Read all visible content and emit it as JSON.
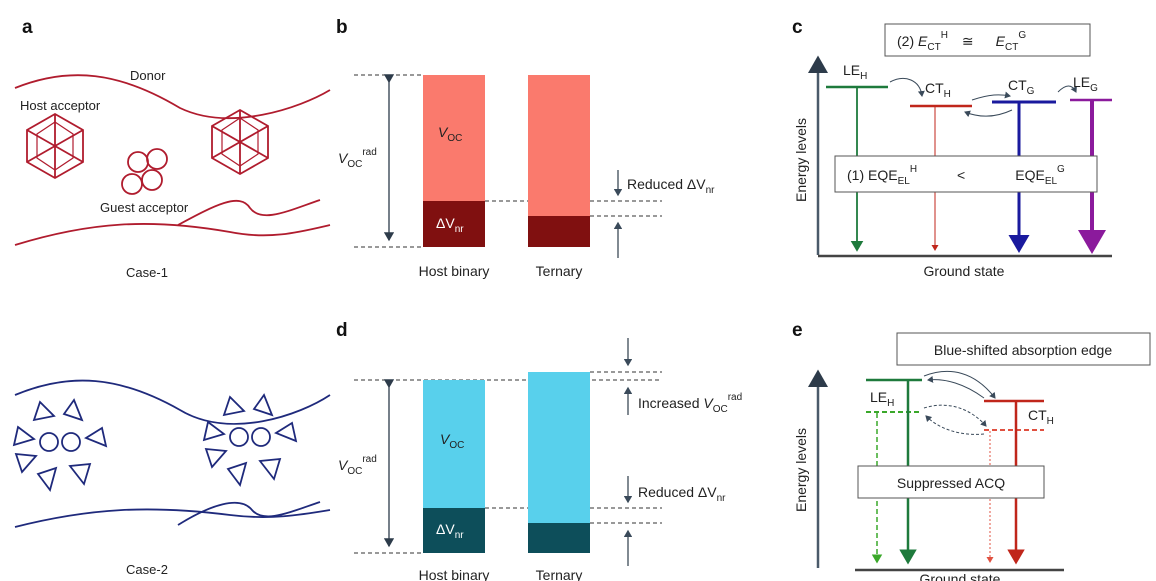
{
  "panel_labels": {
    "a": "a",
    "b": "b",
    "c": "c",
    "d": "d",
    "e": "e"
  },
  "panel_a": {
    "donor": "Donor",
    "host_acceptor": "Host acceptor",
    "guest_acceptor": "Guest acceptor",
    "case1": "Case-1",
    "case2": "Case-2",
    "colors": {
      "case1": "#b01c2e",
      "case2": "#1f2a7c"
    }
  },
  "panel_b": {
    "voc_rad_main": "V",
    "voc_rad_sub": "OC",
    "voc_rad_sup": "rad",
    "voc_main": "V",
    "voc_sub": "OC",
    "dvnr_main": "ΔV",
    "dvnr_sub": "nr",
    "reduced_text": "Reduced ΔV",
    "reduced_sub": "nr",
    "x_labels": [
      "Host binary",
      "Ternary"
    ],
    "colors": {
      "voc": "#fa7a6d",
      "dvnr": "#801010"
    }
  },
  "panel_c": {
    "condition2_prefix": "(2) ",
    "condition2_E": "E",
    "condition2_sub": "CT",
    "condition2_supH": "H",
    "condition2_approx": "≅",
    "condition2_supG": "G",
    "condition1_prefix": "(1) EQE",
    "condition1_sub": "EL",
    "condition1_supH": "H",
    "condition1_lt": "<",
    "condition1_supG": "G",
    "levels": [
      {
        "main": "LE",
        "sub": "H",
        "color": "#1e7a3c"
      },
      {
        "main": "CT",
        "sub": "H",
        "color": "#c0261b"
      },
      {
        "main": "CT",
        "sub": "G",
        "color": "#1a1a9e"
      },
      {
        "main": "LE",
        "sub": "G",
        "color": "#8b1a9c"
      }
    ],
    "y_axis": "Energy levels",
    "ground_state": "Ground state"
  },
  "panel_d": {
    "voc_rad_main": "V",
    "voc_rad_sub": "OC",
    "voc_rad_sup": "rad",
    "voc_main": "V",
    "voc_sub": "OC",
    "dvnr_main": "ΔV",
    "dvnr_sub": "nr",
    "increased_text": "Increased ",
    "increased_V": "V",
    "increased_sub": "OC",
    "increased_sup": "rad",
    "reduced_text": "Reduced ΔV",
    "reduced_sub": "nr",
    "x_labels": [
      "Host binary",
      "Ternary"
    ],
    "colors": {
      "voc": "#58d0ec",
      "dvnr": "#0d4e5a"
    }
  },
  "panel_e": {
    "blue_shift": "Blue-shifted absorption edge",
    "suppressed": "Suppressed ACQ",
    "levels": [
      {
        "main": "LE",
        "sub": "H",
        "color": "#1e7a3c"
      },
      {
        "main": "CT",
        "sub": "H",
        "color": "#c0261b"
      }
    ],
    "y_axis": "Energy levels",
    "ground_state": "Ground state"
  }
}
